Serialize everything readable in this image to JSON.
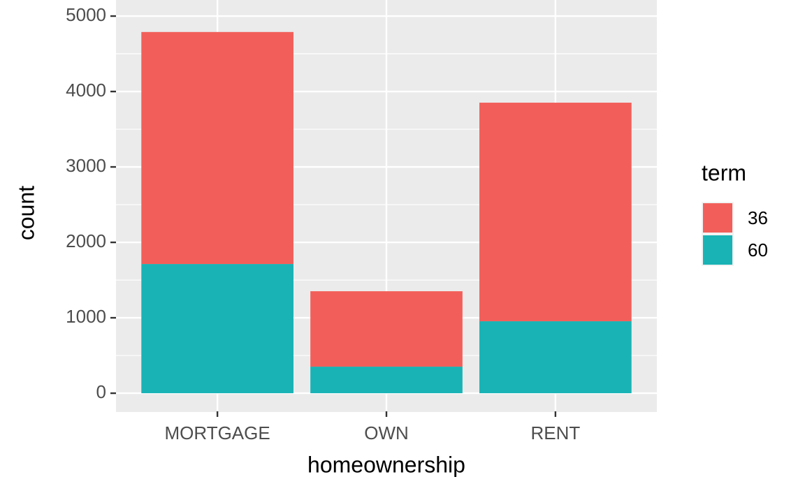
{
  "chart_data": {
    "type": "stacked_bar",
    "x_label": "homeownership",
    "y_label": "count",
    "categories": [
      "MORTGAGE",
      "OWN",
      "RENT"
    ],
    "series": [
      {
        "name": "36",
        "color": "#f25f5a",
        "values": [
          3076,
          1000,
          2898
        ]
      },
      {
        "name": "60",
        "color": "#19b3b5",
        "values": [
          1713,
          352,
          954
        ]
      }
    ],
    "stack_order_bottom_up": [
      "60",
      "36"
    ],
    "legend_title": "term",
    "legend_position": "right",
    "ylim": [
      -240,
      5029
    ],
    "yticks": [
      0,
      1000,
      2000,
      3000,
      4000,
      5000
    ],
    "grid": true
  }
}
